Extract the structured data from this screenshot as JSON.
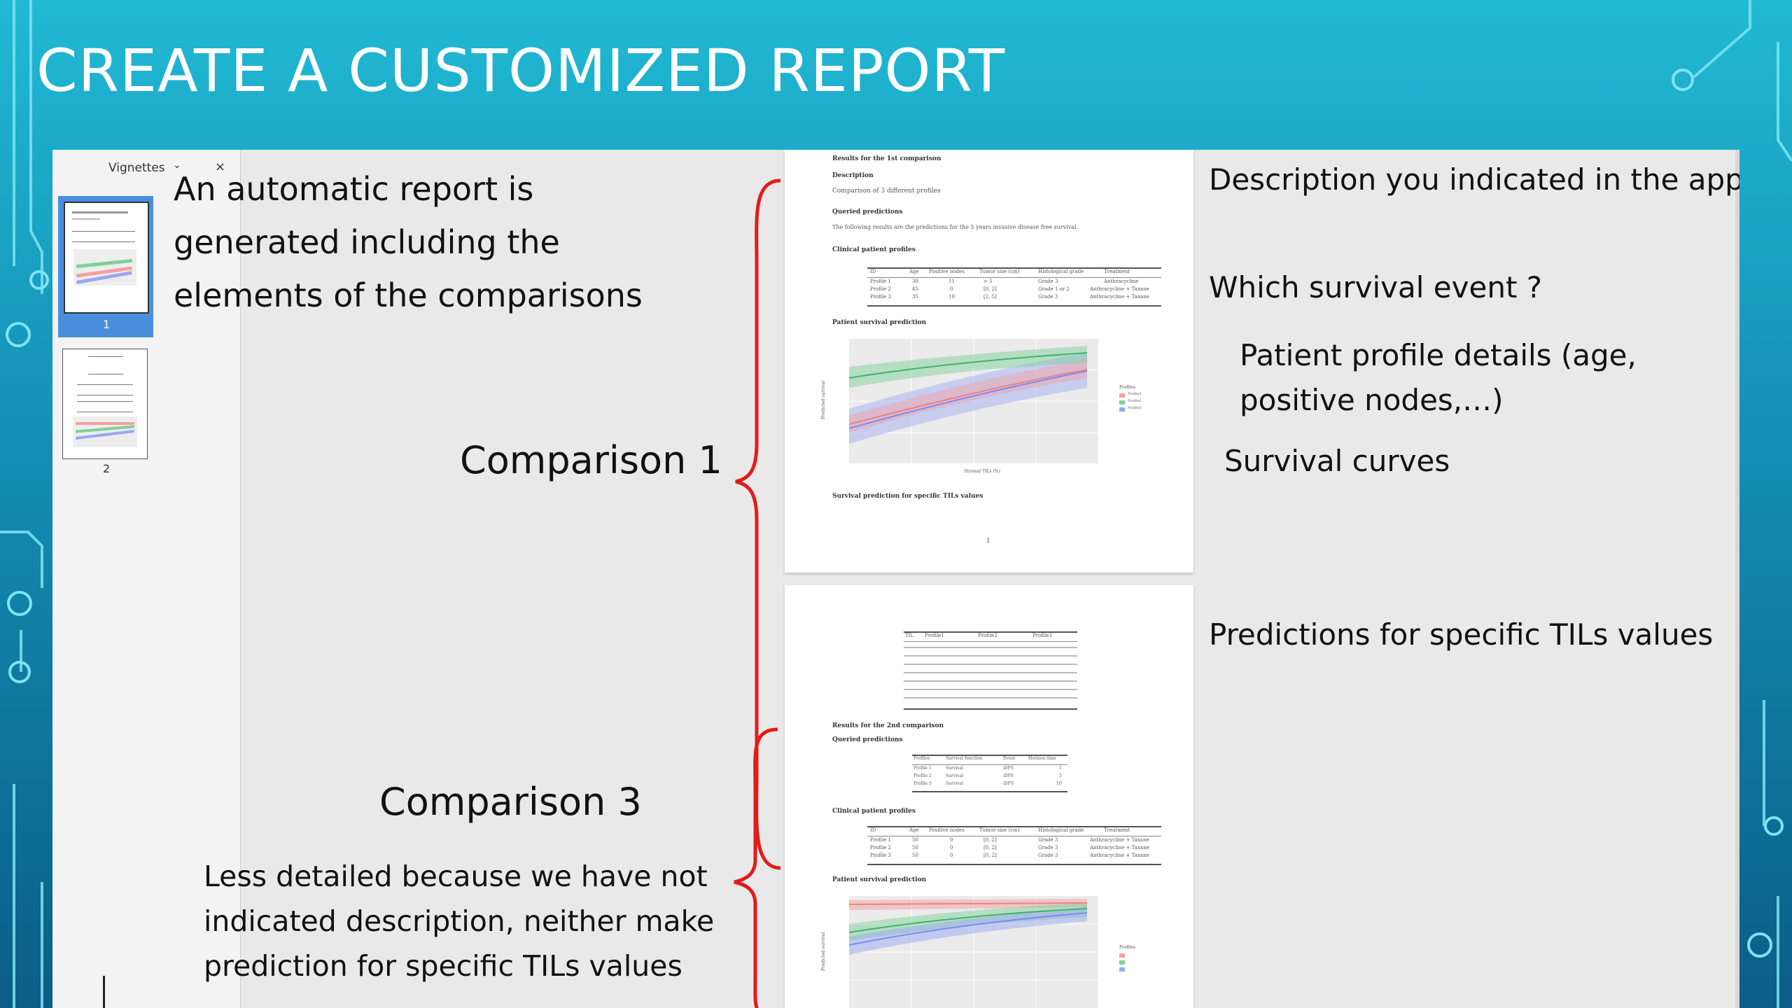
{
  "slide": {
    "title": "CREATE A CUSTOMIZED REPORT"
  },
  "viewer": {
    "thumbnails_header": "Vignettes",
    "thumbnails": [
      {
        "page": "1",
        "selected": true
      },
      {
        "page": "2",
        "selected": false
      }
    ],
    "page_number": "1"
  },
  "report": {
    "page1": {
      "section_title": "Results for the 1st comparison",
      "description_heading": "Description",
      "description_text": "Comparison of 3 different profiles",
      "queried_heading": "Queried predictions",
      "queried_text": "The following results are the predictions for the 5 years invasive disease free survival.",
      "clinical_heading": "Clinical patient profiles",
      "clinical_columns": [
        "ID",
        "Age",
        "Positive nodes",
        "Tumor size (cm)",
        "Histological grade",
        "Treatment"
      ],
      "clinical_rows": [
        [
          "Profile 1",
          "30",
          "11",
          "> 5",
          "Grade 3",
          "Anthracycline"
        ],
        [
          "Profile 2",
          "45",
          "0",
          "[0, 2]",
          "Grade 1 or 2",
          "Anthracycline + Taxane"
        ],
        [
          "Profile 3",
          "35",
          "10",
          "[2, 5]",
          "Grade 3",
          "Anthracycline + Taxane"
        ]
      ],
      "survival_heading": "Patient survival prediction",
      "plot_ylabel": "Predicted survival",
      "plot_xlabel": "Stromal TILs (%)",
      "legend_title": "Profiles",
      "legend_items": [
        "Profile1",
        "Profile2",
        "Profile3"
      ],
      "specific_heading": "Survival prediction for specific TILs values"
    },
    "page2": {
      "tils_columns": [
        "TIL",
        "Profile1",
        "Profile2",
        "Profile3"
      ],
      "section_title": "Results for the 2nd comparison",
      "queried_heading": "Queried predictions",
      "queried_columns": [
        "Profiles",
        "Survival function",
        "Event",
        "Horizon time"
      ],
      "queried_rows": [
        [
          "Profile 1",
          "Survival",
          "iDFS",
          "1"
        ],
        [
          "Profile 2",
          "Survival",
          "iDFS",
          "5"
        ],
        [
          "Profile 3",
          "Survival",
          "iDFS",
          "10"
        ]
      ],
      "clinical_heading": "Clinical patient profiles",
      "clinical_columns": [
        "ID",
        "Age",
        "Positive nodes",
        "Tumor size (cm)",
        "Histological grade",
        "Treatment"
      ],
      "clinical_rows": [
        [
          "Profile 1",
          "50",
          "0",
          "[0, 2]",
          "Grade 3",
          "Anthracycline + Taxane"
        ],
        [
          "Profile 2",
          "50",
          "0",
          "[0, 2]",
          "Grade 3",
          "Anthracycline + Taxane"
        ],
        [
          "Profile 3",
          "50",
          "0",
          "[0, 2]",
          "Grade 3",
          "Anthracycline + Taxane"
        ]
      ],
      "survival_heading": "Patient survival prediction",
      "plot_ylabel": "Predicted survival",
      "legend_title": "Profiles"
    }
  },
  "annotations": {
    "intro": [
      "An automatic report is",
      "generated including the",
      "elements of the comparisons"
    ],
    "comparison1": "Comparison 1",
    "comparison3": "Comparison 3",
    "less_detailed": [
      "Less detailed because we have not",
      "indicated description, neither make",
      "prediction for specific TILs values"
    ],
    "description": "Description you indicated in the app",
    "survival_event": "Which survival event ?",
    "profile_details": [
      "Patient profile details (age,",
      "positive nodes,…)"
    ],
    "survival_curves": "Survival curves",
    "predictions_tils": "Predictions for specific TILs values"
  },
  "colors": {
    "brace": "#e31b1b",
    "profile1": "#f08080",
    "profile2": "#3cb371",
    "profile3": "#7b8cf0"
  }
}
